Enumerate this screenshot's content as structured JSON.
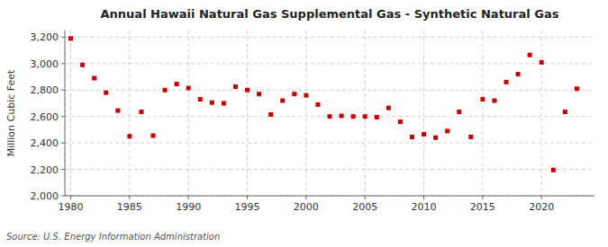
{
  "chart_data": {
    "type": "scatter",
    "title": "Annual Hawaii Natural Gas Supplemental Gas - Synthetic Natural Gas",
    "ylabel": "Million Cubic Feet",
    "source": "Source: U.S. Energy Information Administration",
    "x": [
      1980,
      1981,
      1982,
      1983,
      1984,
      1985,
      1986,
      1987,
      1988,
      1989,
      1990,
      1991,
      1992,
      1993,
      1994,
      1995,
      1996,
      1997,
      1998,
      1999,
      2000,
      2001,
      2002,
      2003,
      2004,
      2005,
      2006,
      2007,
      2008,
      2009,
      2010,
      2011,
      2012,
      2013,
      2014,
      2015,
      2016,
      2017,
      2018,
      2019,
      2020,
      2021,
      2022,
      2023
    ],
    "values": [
      3190,
      2990,
      2890,
      2780,
      2645,
      2450,
      2635,
      2455,
      2800,
      2845,
      2815,
      2730,
      2705,
      2700,
      2825,
      2800,
      2770,
      2615,
      2720,
      2770,
      2760,
      2690,
      2600,
      2605,
      2600,
      2600,
      2595,
      2665,
      2560,
      2445,
      2465,
      2440,
      2490,
      2635,
      2445,
      2730,
      2720,
      2860,
      2920,
      3065,
      3010,
      2195,
      2635,
      2810
    ],
    "color": "#cc0000",
    "marker": "square",
    "xlim": [
      1979.5,
      2024.5
    ],
    "xticks": [
      1980,
      1985,
      1990,
      1995,
      2000,
      2005,
      2010,
      2015,
      2020
    ],
    "ylim": [
      2000,
      3250
    ],
    "yticks": [
      {
        "value": 2000,
        "label": "2,000"
      },
      {
        "value": 2200,
        "label": "2,200"
      },
      {
        "value": 2400,
        "label": "2,400"
      },
      {
        "value": 2600,
        "label": "2,600"
      },
      {
        "value": 2800,
        "label": "2,800"
      },
      {
        "value": 3000,
        "label": "3,000"
      },
      {
        "value": 3200,
        "label": "3,200"
      }
    ],
    "grid": true
  }
}
